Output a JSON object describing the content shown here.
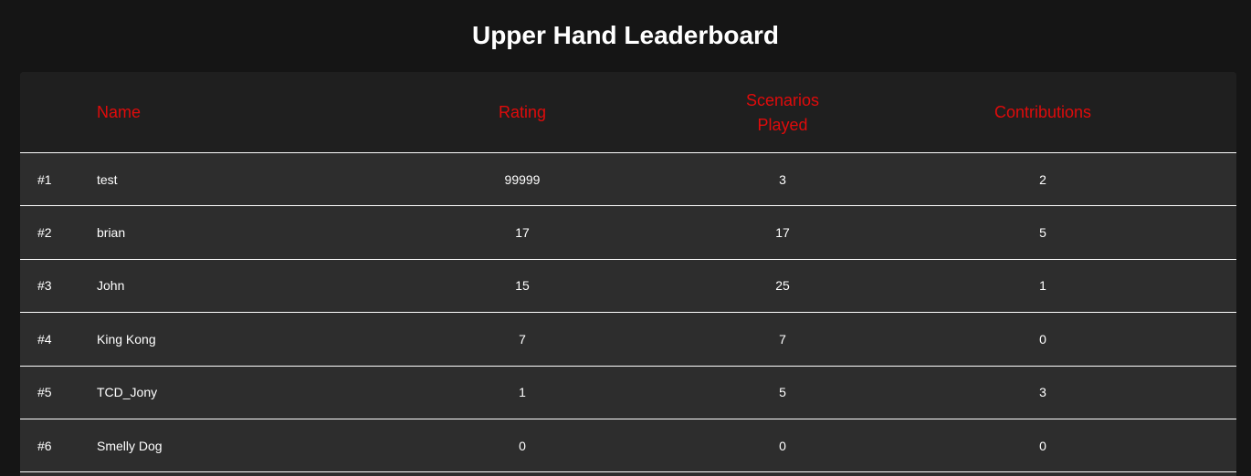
{
  "title": "Upper Hand Leaderboard",
  "colors": {
    "background": "#151515",
    "header_background": "#1f1f1f",
    "row_background": "#2d2d2d",
    "header_text": "#e00b0b",
    "text": "#ffffff"
  },
  "table": {
    "headers": {
      "name": "Name",
      "rating": "Rating",
      "scenarios_line1": "Scenarios",
      "scenarios_line2": "Played",
      "contributions": "Contributions"
    },
    "rows": [
      {
        "rank": "#1",
        "name": "test",
        "rating": "99999",
        "scenarios": "3",
        "contributions": "2"
      },
      {
        "rank": "#2",
        "name": "brian",
        "rating": "17",
        "scenarios": "17",
        "contributions": "5"
      },
      {
        "rank": "#3",
        "name": "John",
        "rating": "15",
        "scenarios": "25",
        "contributions": "1"
      },
      {
        "rank": "#4",
        "name": "King Kong",
        "rating": "7",
        "scenarios": "7",
        "contributions": "0"
      },
      {
        "rank": "#5",
        "name": "TCD_Jony",
        "rating": "1",
        "scenarios": "5",
        "contributions": "3"
      },
      {
        "rank": "#6",
        "name": "Smelly Dog",
        "rating": "0",
        "scenarios": "0",
        "contributions": "0"
      }
    ]
  }
}
